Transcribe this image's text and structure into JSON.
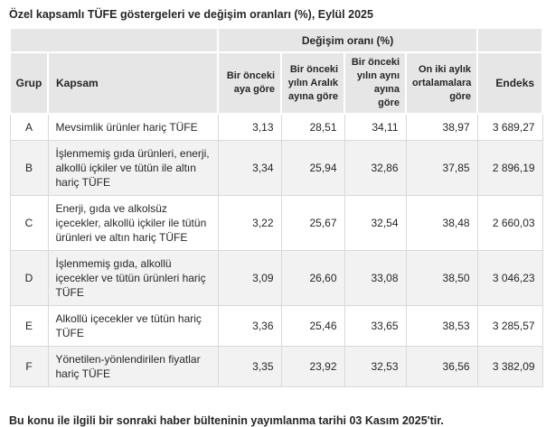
{
  "page": {
    "title": "Özel kapsamlı TÜFE göstergeleri ve değişim oranları (%), Eylül 2025",
    "footer_note": "Bu konu ile ilgili bir sonraki haber bülteninin yayımlanma tarihi 03 Kasım 2025'tir."
  },
  "table": {
    "group_header": "Değişim oranı (%)",
    "columns": {
      "grup": "Grup",
      "kapsam": "Kapsam",
      "prev_month": "Bir önceki aya göre",
      "prev_december": "Bir önceki yılın Aralık ayına göre",
      "same_month_prev_year": "Bir önceki yılın aynı ayına göre",
      "twelve_month_avg": "On iki aylık ortalamalara göre",
      "endeks": "Endeks"
    },
    "rows": [
      {
        "grup": "A",
        "kapsam": "Mevsimlik ürünler hariç TÜFE",
        "values": [
          "3,13",
          "28,51",
          "34,11",
          "38,97",
          "3 689,27"
        ]
      },
      {
        "grup": "B",
        "kapsam": "İşlenmemiş gıda ürünleri, enerji, alkollü içkiler ve tütün ile altın hariç TÜFE",
        "values": [
          "3,34",
          "25,94",
          "32,86",
          "37,85",
          "2 896,19"
        ]
      },
      {
        "grup": "C",
        "kapsam": "Enerji, gıda ve alkolsüz içecekler, alkollü içkiler ile tütün ürünleri ve altın hariç TÜFE",
        "values": [
          "3,22",
          "25,67",
          "32,54",
          "38,48",
          "2 660,03"
        ]
      },
      {
        "grup": "D",
        "kapsam": "İşlenmemiş gıda, alkollü içecekler ve tütün ürünleri hariç TÜFE",
        "values": [
          "3,09",
          "26,60",
          "33,08",
          "38,50",
          "3 046,23"
        ]
      },
      {
        "grup": "E",
        "kapsam": "Alkollü içecekler ve tütün hariç TÜFE",
        "values": [
          "3,36",
          "25,46",
          "33,65",
          "38,53",
          "3 285,57"
        ]
      },
      {
        "grup": "F",
        "kapsam": "Yönetilen-yönlendirilen fiyatlar hariç TÜFE",
        "values": [
          "3,35",
          "23,92",
          "32,53",
          "36,56",
          "3 382,09"
        ]
      }
    ]
  },
  "colors": {
    "header_bg": "#e6e6e6",
    "stripe_bg": "#f2f2f2",
    "border_color": "#d9d9d9",
    "text_color": "#262626"
  }
}
